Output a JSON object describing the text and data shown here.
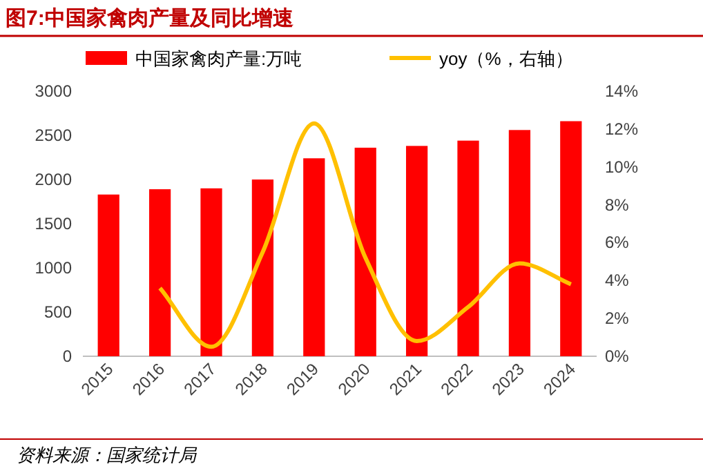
{
  "chart_data": {
    "type": "bar",
    "title": "图7:中国家禽肉产量及同比增速",
    "categories": [
      "2015",
      "2016",
      "2017",
      "2018",
      "2019",
      "2020",
      "2021",
      "2022",
      "2023",
      "2024"
    ],
    "series": [
      {
        "name": "中国家禽肉产量:万吨",
        "color": "#ff0000",
        "values": [
          1830,
          1890,
          1900,
          2000,
          2240,
          2360,
          2380,
          2440,
          2560,
          2660
        ]
      },
      {
        "name": "yoy（%，右轴）",
        "type": "line",
        "axis": "y2",
        "color": "#ffc000",
        "values": [
          null,
          3.6,
          0.5,
          5.5,
          12.3,
          5.2,
          0.8,
          2.6,
          4.9,
          3.8
        ]
      }
    ],
    "ylim": [
      0,
      3000
    ],
    "yticks": [
      0,
      500,
      1000,
      1500,
      2000,
      2500,
      3000
    ],
    "y2lim": [
      0,
      14
    ],
    "y2ticks": [
      {
        "value": 0,
        "label": "0%"
      },
      {
        "value": 2,
        "label": "2%"
      },
      {
        "value": 4,
        "label": "4%"
      },
      {
        "value": 6,
        "label": "6%"
      },
      {
        "value": 8,
        "label": "8%"
      },
      {
        "value": 10,
        "label": "10%"
      },
      {
        "value": 12,
        "label": "12%"
      },
      {
        "value": 14,
        "label": "14%"
      }
    ],
    "legend": "top",
    "grid": false,
    "annotations": [
      "资料来源：国家统计局"
    ]
  }
}
